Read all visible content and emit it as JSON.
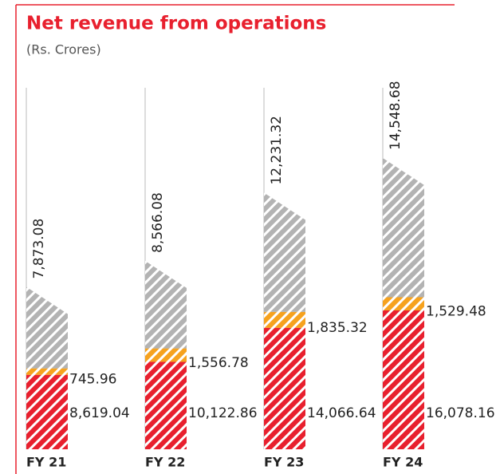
{
  "chart_data": {
    "type": "bar",
    "stacked": true,
    "title": "Net revenue from operations",
    "subtitle": "(Rs. Crores)",
    "categories": [
      "FY 21",
      "FY 22",
      "FY 23",
      "FY 24"
    ],
    "series": [
      {
        "color": "#e8202e",
        "values": [
          8619.04,
          10122.86,
          14066.64,
          16078.16
        ],
        "value_labels": [
          "8,619.04",
          "10,122.86",
          "14,066.64",
          "16,078.16"
        ]
      },
      {
        "color": "#f6a21e",
        "values": [
          745.96,
          1556.78,
          1835.32,
          1529.48
        ],
        "value_labels": [
          "745.96",
          "1,556.78",
          "1,835.32",
          "1,529.48"
        ]
      },
      {
        "color": "#b3b3b3",
        "values": [
          7873.08,
          8566.08,
          12231.32,
          14548.68
        ],
        "value_labels": [
          "7,873.08",
          "8,566.08",
          "12,231.32",
          "14,548.68"
        ]
      }
    ]
  }
}
